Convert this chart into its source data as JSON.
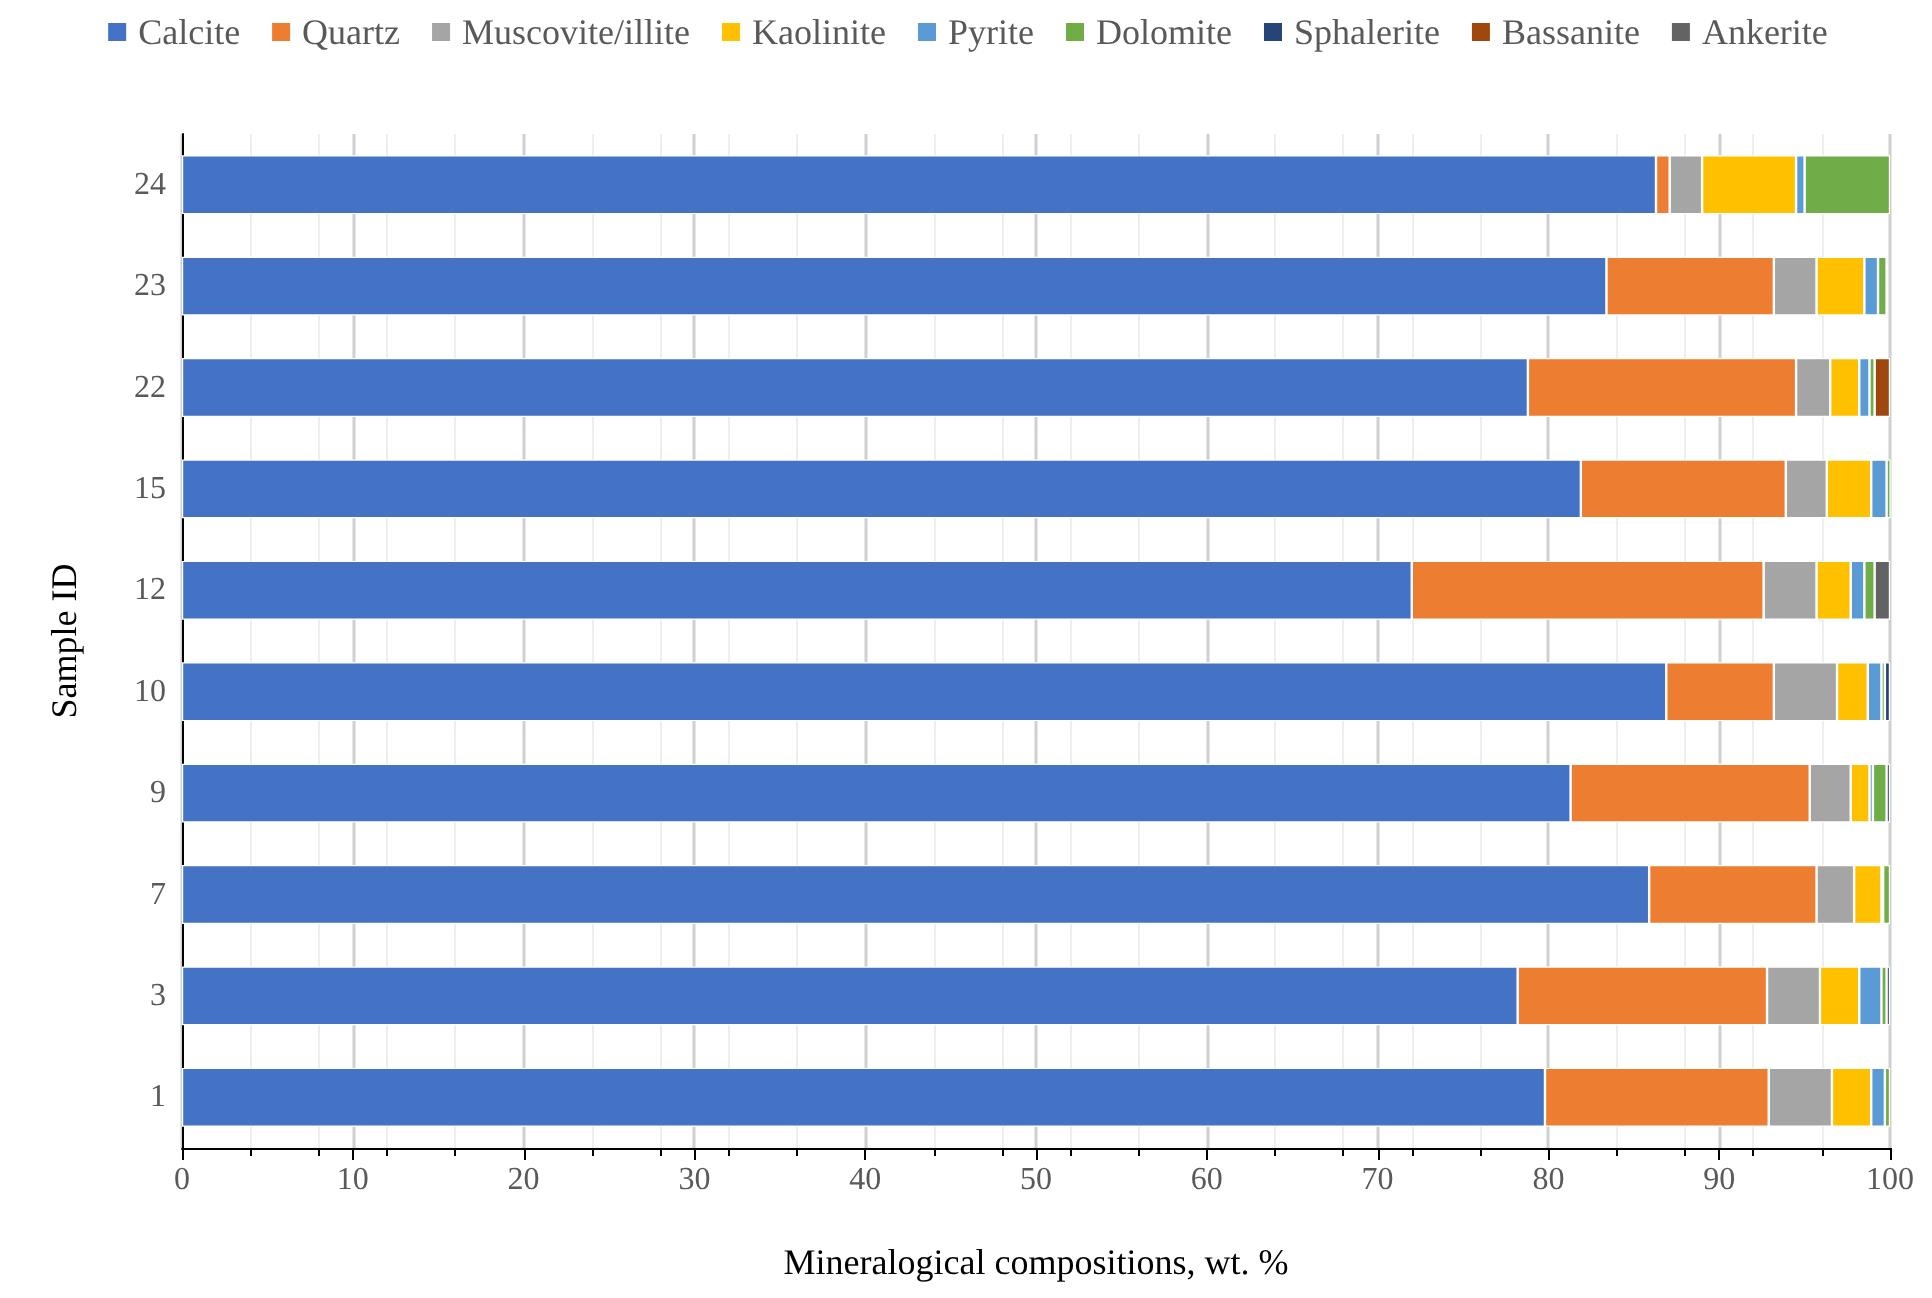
{
  "chart_data": {
    "type": "bar",
    "orientation": "horizontal",
    "stacked": true,
    "xlabel": "Mineralogical compositions, wt. %",
    "ylabel": "Sample ID",
    "categories": [
      "24",
      "23",
      "22",
      "15",
      "12",
      "10",
      "9",
      "7",
      "3",
      "1"
    ],
    "series": [
      {
        "name": "Calcite",
        "color": "#4472c4",
        "values": [
          86.3,
          83.4,
          78.8,
          81.9,
          72.0,
          86.9,
          81.3,
          85.9,
          78.2,
          79.8
        ]
      },
      {
        "name": "Quartz",
        "color": "#ed7d31",
        "values": [
          0.8,
          9.8,
          15.7,
          12.0,
          20.6,
          6.3,
          14.0,
          9.8,
          14.6,
          13.1
        ]
      },
      {
        "name": "Muscovite/illite",
        "color": "#a5a5a5",
        "values": [
          1.9,
          2.5,
          2.0,
          2.4,
          3.1,
          3.7,
          2.4,
          2.2,
          3.1,
          3.7
        ]
      },
      {
        "name": "Kaolinite",
        "color": "#ffc000",
        "values": [
          5.5,
          2.8,
          1.7,
          2.6,
          2.0,
          1.8,
          1.1,
          1.6,
          2.3,
          2.3
        ]
      },
      {
        "name": "Pyrite",
        "color": "#5b9bd5",
        "values": [
          0.5,
          0.8,
          0.6,
          0.9,
          0.8,
          0.8,
          0.2,
          0.1,
          1.3,
          0.8
        ]
      },
      {
        "name": "Dolomite",
        "color": "#70ad47",
        "values": [
          5.0,
          0.5,
          0.3,
          0.3,
          0.6,
          0.2,
          0.8,
          0.4,
          0.3,
          0.3
        ]
      },
      {
        "name": "Sphalerite",
        "color": "#264478",
        "values": [
          null,
          null,
          null,
          null,
          null,
          0.3,
          0.2,
          null,
          0.2,
          null
        ]
      },
      {
        "name": "Bassanite",
        "color": "#9e480e",
        "values": [
          null,
          null,
          0.9,
          null,
          null,
          null,
          null,
          null,
          null,
          null
        ]
      },
      {
        "name": "Ankerite",
        "color": "#636363",
        "values": [
          null,
          null,
          null,
          null,
          0.9,
          null,
          null,
          null,
          null,
          null
        ]
      }
    ],
    "xlim": [
      0,
      100
    ],
    "xticks": [
      0,
      10,
      20,
      30,
      40,
      50,
      60,
      70,
      80,
      90,
      100
    ],
    "grid": "x",
    "legend": "top"
  }
}
